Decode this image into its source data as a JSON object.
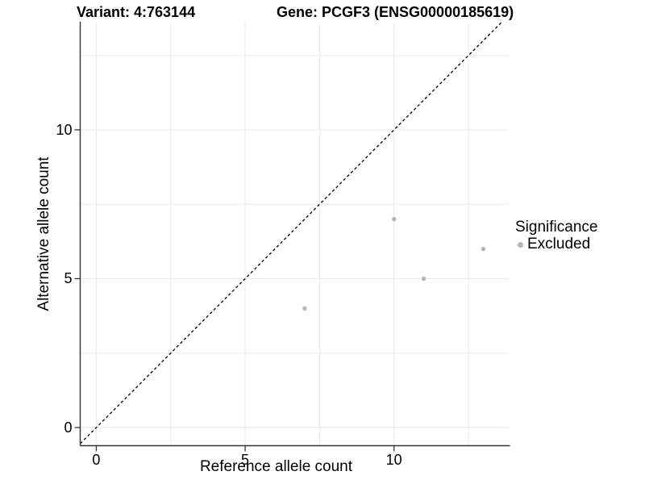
{
  "header": {
    "variant_title": "Variant: 4:763144",
    "gene_title": "Gene: PCGF3 (ENSG00000185619)"
  },
  "chart_data": {
    "type": "scatter",
    "xlabel": "Reference allele count",
    "ylabel": "Alternative allele count",
    "xlim": [
      -0.54,
      13.84
    ],
    "ylim": [
      -0.61,
      13.63
    ],
    "x_ticks": [
      0,
      5,
      10
    ],
    "y_ticks": [
      0,
      5,
      10
    ],
    "x_minor_gridlines": [
      2.5,
      7.5,
      12.5
    ],
    "y_minor_gridlines": [
      2.5,
      7.5,
      12.5
    ],
    "grid": "major and minor gridlines, light gray on white panel",
    "series": [
      {
        "name": "Excluded",
        "color": "#b5b5b5",
        "points": [
          {
            "x": 7,
            "y": 4
          },
          {
            "x": 10,
            "y": 7
          },
          {
            "x": 11,
            "y": 5
          },
          {
            "x": 13,
            "y": 6
          }
        ]
      }
    ],
    "reference_line": {
      "kind": "identity y=x",
      "style": "dashed",
      "color": "#000000"
    },
    "legend": {
      "title": "Significance",
      "position": "right",
      "items": [
        {
          "label": "Excluded",
          "color": "#b5b5b5"
        }
      ]
    }
  },
  "colors": {
    "background": "#ffffff",
    "gridline": "#ebebeb",
    "axis_line": "#333333",
    "point": "#b5b5b5",
    "text": "#000000"
  }
}
